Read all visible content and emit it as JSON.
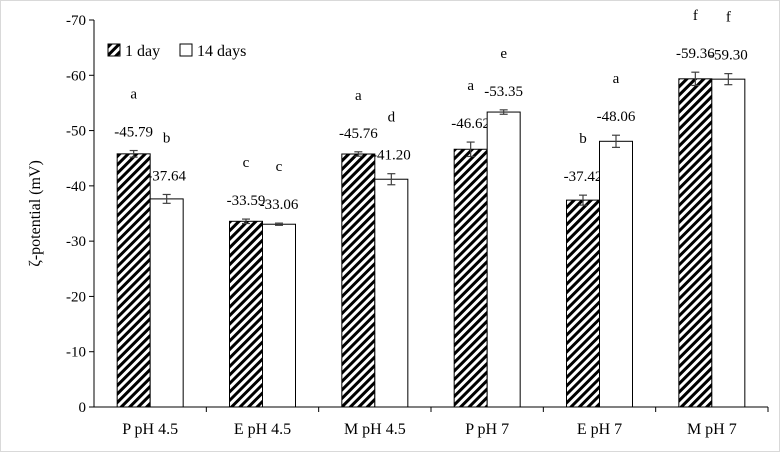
{
  "chart_data": {
    "type": "bar",
    "categories": [
      "P pH 4.5",
      "E pH 4.5",
      "M pH 4.5",
      "P pH 7",
      "E pH 7",
      "M pH 7"
    ],
    "series": [
      {
        "name": "1 day",
        "pattern": "diagonal-hatch",
        "values": [
          -45.79,
          -33.59,
          -45.76,
          -46.62,
          -37.42,
          -59.36
        ],
        "errors": [
          0.6,
          0.4,
          0.4,
          1.3,
          0.9,
          1.2
        ],
        "value_labels": [
          "-45.79",
          "-33.59",
          "-45.76",
          "-46.62",
          "-37.42",
          "-59.36"
        ],
        "letters": [
          "a",
          "c",
          "a",
          "a",
          "b",
          "f"
        ]
      },
      {
        "name": "14 days",
        "pattern": "white",
        "values": [
          -37.64,
          -33.06,
          -41.2,
          -53.35,
          -48.06,
          -59.3
        ],
        "errors": [
          0.8,
          0.2,
          1.0,
          0.4,
          1.1,
          1.0
        ],
        "value_labels": [
          "-37.64",
          "-33.06",
          "-41.20",
          "-53.35",
          "-48.06",
          "-59.30"
        ],
        "letters": [
          "b",
          "c",
          "d",
          "e",
          "a",
          "f"
        ]
      }
    ],
    "ylabel": "ζ-potential (mV)",
    "xlabel": "",
    "ylim": [
      0,
      -70
    ],
    "yticks": [
      0,
      -10,
      -20,
      -30,
      -40,
      -50,
      -60,
      -70
    ],
    "ytick_labels": [
      "0",
      "-10",
      "-20",
      "-30",
      "-40",
      "-50",
      "-60",
      "-70"
    ],
    "y_axis_inverted": true,
    "grid": false,
    "legend_position": "top-left",
    "colors": {
      "bar_fill": "#ffffff",
      "bar_stroke": "#000000",
      "hatch": "#000000",
      "error_bar": "#404040",
      "axis": "#000000"
    }
  }
}
